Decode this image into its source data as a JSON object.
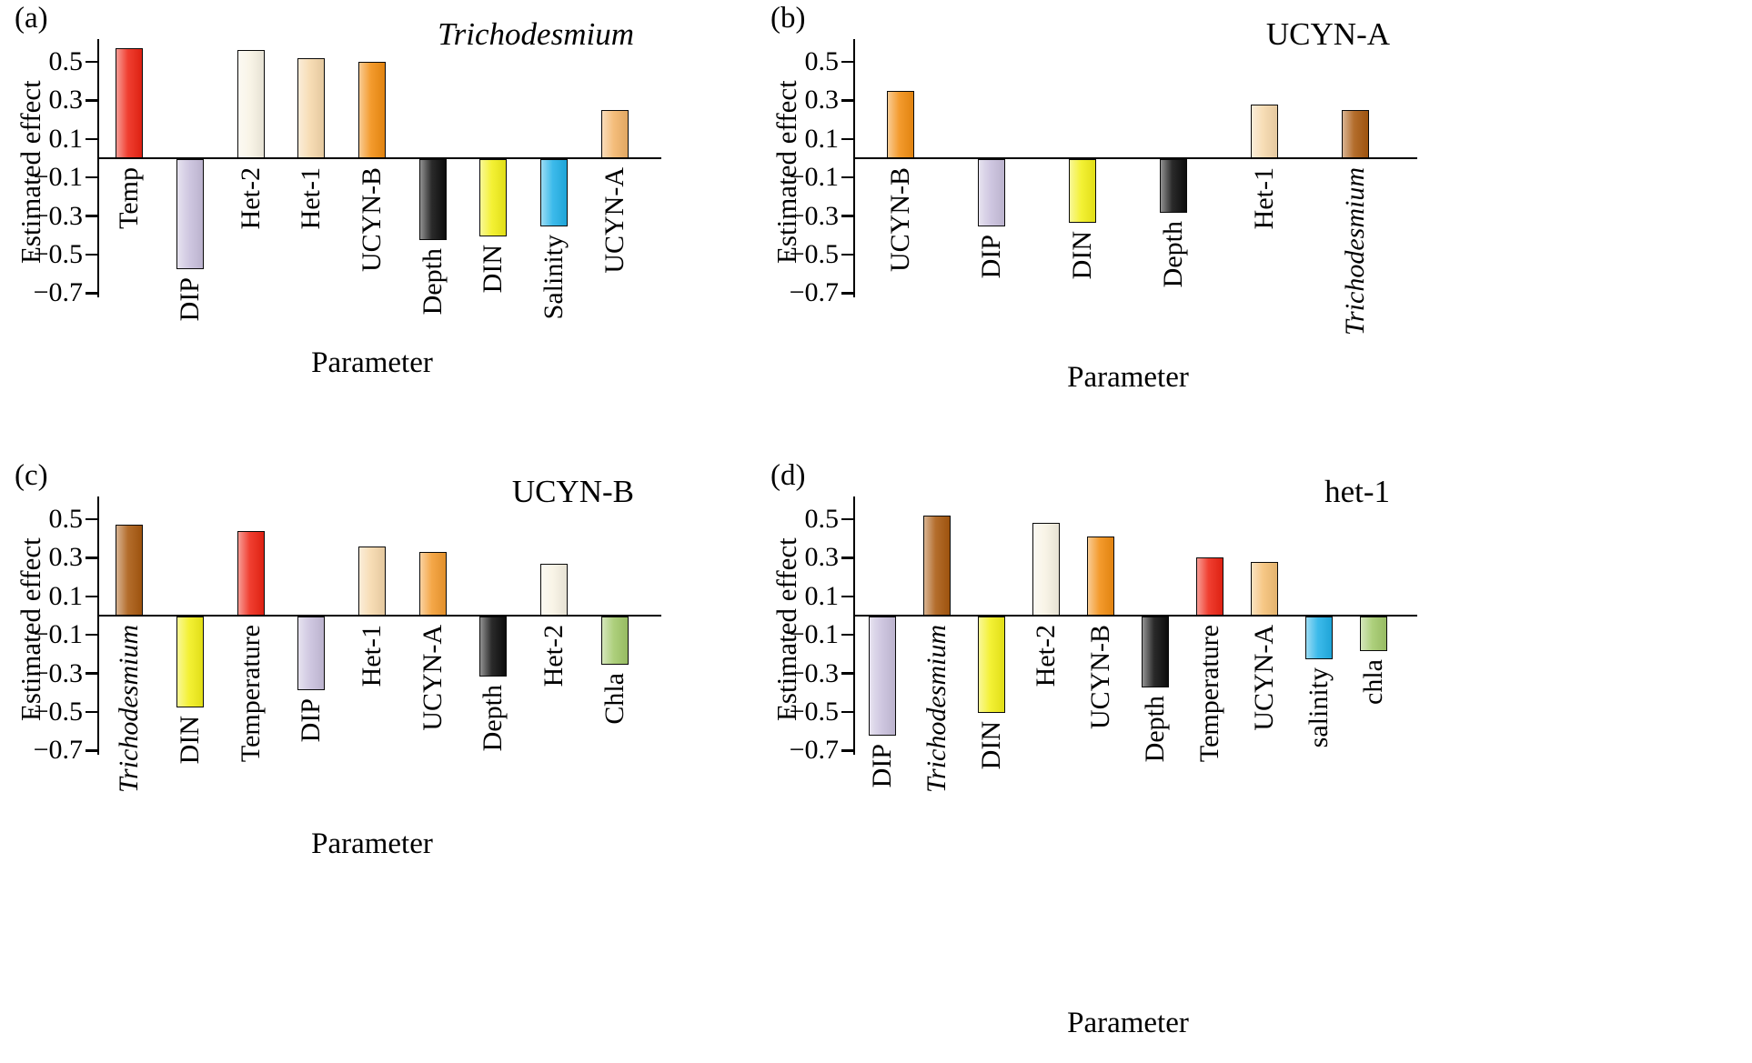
{
  "chart_data": [
    {
      "type": "bar",
      "panel": "(a)",
      "title": "Trichodesmium",
      "title_italic": true,
      "xlabel": "Parameter",
      "ylabel": "Estimated effect",
      "ylim": [
        -0.72,
        0.62
      ],
      "yticks": [
        "0.5",
        "0.3",
        "0.1",
        "-0.1",
        "-0.3",
        "-0.5",
        "-0.7"
      ],
      "grid": false,
      "legend": "none",
      "label_mode": "staggered",
      "bars": [
        {
          "label": "Temp",
          "value": 0.57,
          "color": "#ee2414",
          "italic": false
        },
        {
          "label": "DIP",
          "value": -0.57,
          "color": "#c9c0dd",
          "italic": false
        },
        {
          "label": "Het-2",
          "value": 0.56,
          "color": "#f8f3e4",
          "italic": false
        },
        {
          "label": "Het-1",
          "value": 0.52,
          "color": "#f6d8ab",
          "italic": false
        },
        {
          "label": "UCYN-B",
          "value": 0.5,
          "color": "#f28d11",
          "italic": false
        },
        {
          "label": "Depth",
          "value": -0.42,
          "color": "#0d0d0d",
          "italic": false
        },
        {
          "label": "DIN",
          "value": -0.4,
          "color": "#f2ef19",
          "italic": false
        },
        {
          "label": "Salinity",
          "value": -0.35,
          "color": "#22b1e8",
          "italic": false
        },
        {
          "label": "UCYN-A",
          "value": 0.25,
          "color": "#f3b469",
          "italic": false
        }
      ]
    },
    {
      "type": "bar",
      "panel": "(b)",
      "title": "UCYN-A",
      "title_italic": false,
      "xlabel": "Parameter",
      "ylabel": "Estimated effect",
      "ylim": [
        -0.72,
        0.62
      ],
      "yticks": [
        "0.5",
        "0.3",
        "0.1",
        "-0.1",
        "-0.3",
        "-0.5",
        "-0.7"
      ],
      "grid": false,
      "legend": "none",
      "label_mode": "staggered",
      "bars": [
        {
          "label": "UCYN-B",
          "value": 0.35,
          "color": "#f28d11",
          "italic": false
        },
        {
          "label": "DIP",
          "value": -0.35,
          "color": "#c9c0dd",
          "italic": false
        },
        {
          "label": "DIN",
          "value": -0.33,
          "color": "#f2ef19",
          "italic": false
        },
        {
          "label": "Depth",
          "value": -0.28,
          "color": "#0d0d0d",
          "italic": false
        },
        {
          "label": "Het-1",
          "value": 0.28,
          "color": "#f6d8ab",
          "italic": false
        },
        {
          "label": "Trichodesmium",
          "value": 0.25,
          "color": "#a9590f",
          "italic": true
        }
      ]
    },
    {
      "type": "bar",
      "panel": "(c)",
      "title": "UCYN-B",
      "title_italic": false,
      "xlabel": "Parameter",
      "ylabel": "Estimated effect",
      "ylim": [
        -0.72,
        0.62
      ],
      "yticks": [
        "0.5",
        "0.3",
        "0.1",
        "-0.1",
        "-0.3",
        "-0.5",
        "-0.7"
      ],
      "grid": false,
      "legend": "none",
      "label_mode": "staggered",
      "bars": [
        {
          "label": "Trichodesmium",
          "value": 0.47,
          "color": "#a9590f",
          "italic": true
        },
        {
          "label": "DIN",
          "value": -0.47,
          "color": "#f2ef19",
          "italic": false
        },
        {
          "label": "Temperature",
          "value": 0.44,
          "color": "#ee2414",
          "italic": false
        },
        {
          "label": "DIP",
          "value": -0.38,
          "color": "#c9c0dd",
          "italic": false
        },
        {
          "label": "Het-1",
          "value": 0.36,
          "color": "#f6d8ab",
          "italic": false
        },
        {
          "label": "UCYN-A",
          "value": 0.33,
          "color": "#f39b2f",
          "italic": false
        },
        {
          "label": "Depth",
          "value": -0.31,
          "color": "#0d0d0d",
          "italic": false
        },
        {
          "label": "Het-2",
          "value": 0.27,
          "color": "#f8f3e4",
          "italic": false
        },
        {
          "label": "Chla",
          "value": -0.25,
          "color": "#a2c96a",
          "italic": false
        }
      ]
    },
    {
      "type": "bar",
      "panel": "(d)",
      "title": "het-1",
      "title_italic": false,
      "xlabel": "Parameter",
      "ylabel": "Estimated effect",
      "ylim": [
        -0.72,
        0.62
      ],
      "yticks": [
        "0.5",
        "0.3",
        "0.1",
        "-0.1",
        "-0.3",
        "-0.5",
        "-0.7"
      ],
      "grid": false,
      "legend": "none",
      "label_mode": "staggered",
      "bars": [
        {
          "label": "DIP",
          "value": -0.62,
          "color": "#c9c0dd",
          "italic": false
        },
        {
          "label": "Trichodesmium",
          "value": 0.52,
          "color": "#a9590f",
          "italic": true
        },
        {
          "label": "DIN",
          "value": -0.5,
          "color": "#f2ef19",
          "italic": false
        },
        {
          "label": "Het-2",
          "value": 0.48,
          "color": "#f8f3e4",
          "italic": false
        },
        {
          "label": "UCYN-B",
          "value": 0.41,
          "color": "#f28d11",
          "italic": false
        },
        {
          "label": "Depth",
          "value": -0.37,
          "color": "#0d0d0d",
          "italic": false
        },
        {
          "label": "Temperature",
          "value": 0.3,
          "color": "#ee2414",
          "italic": false
        },
        {
          "label": "UCYN-A",
          "value": 0.28,
          "color": "#f5c075",
          "italic": false
        },
        {
          "label": "salinity",
          "value": -0.22,
          "color": "#22b1e8",
          "italic": false
        },
        {
          "label": "chla",
          "value": -0.18,
          "color": "#a2c96a",
          "italic": false
        }
      ]
    }
  ]
}
